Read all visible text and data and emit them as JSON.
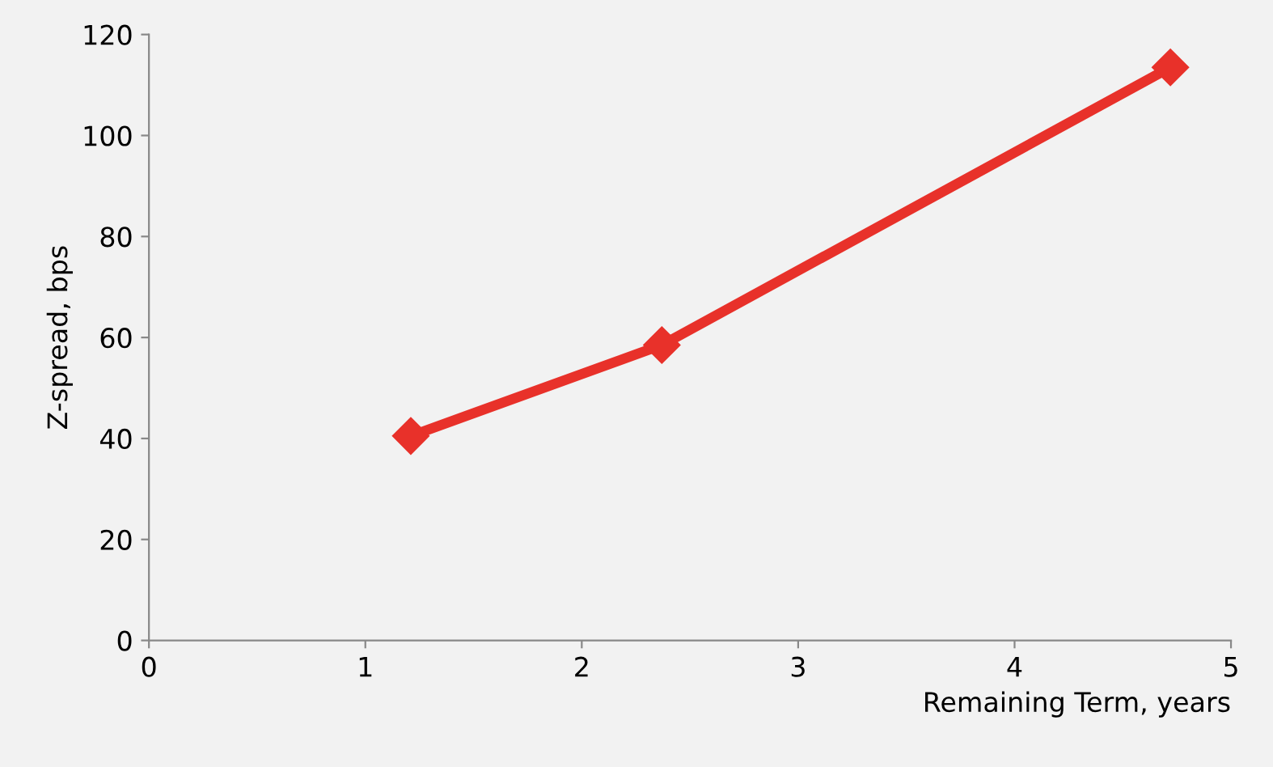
{
  "chart_data": {
    "type": "line",
    "xlabel": "Remaining Term, years",
    "ylabel": "Z-spread, bps",
    "x": [
      1.21,
      2.37,
      4.72
    ],
    "series": [
      {
        "color": "#e8312a",
        "values": [
          40.5,
          58.5,
          113.5
        ]
      }
    ],
    "xlim": [
      0,
      5
    ],
    "xticks": [
      0,
      1,
      2,
      3,
      4,
      5
    ],
    "ylim": [
      0,
      120
    ],
    "yticks": [
      0,
      20,
      40,
      60,
      80,
      100,
      120
    ],
    "grid": false,
    "marker": "diamond",
    "line_style": "solid"
  }
}
